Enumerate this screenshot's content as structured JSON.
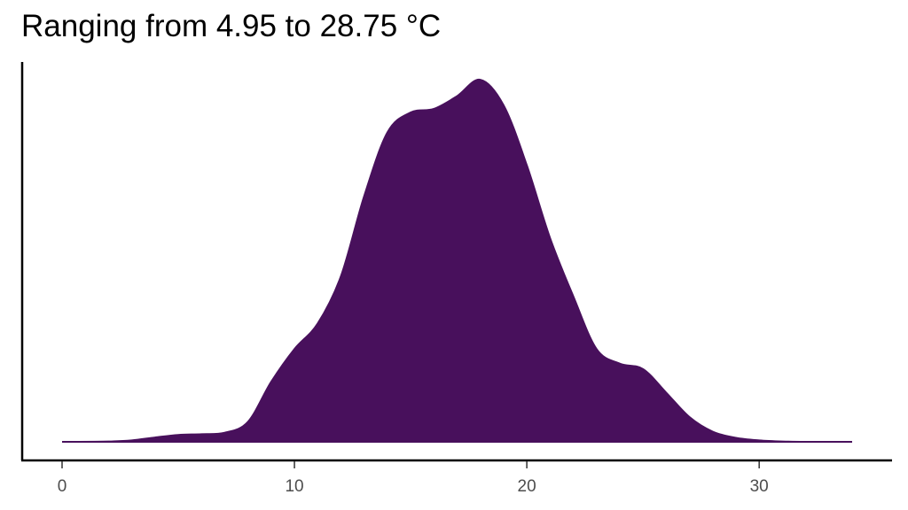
{
  "chart_data": {
    "type": "area",
    "title": "Ranging from 4.95 to 28.75 °C",
    "xlabel": "",
    "ylabel": "",
    "xlim": [
      0,
      34
    ],
    "ylim": [
      0,
      0.1
    ],
    "x_ticks": [
      0,
      10,
      20,
      30
    ],
    "x_tick_labels": [
      "0",
      "10",
      "20",
      "30"
    ],
    "y_ticks_visible": false,
    "grid": false,
    "legend": "none",
    "fill_color": "#48105C",
    "axis_color": "#000000",
    "series": [
      {
        "x": [
          0,
          2,
          3,
          4,
          5,
          6,
          7,
          8,
          9,
          10,
          11,
          12,
          13,
          14,
          15,
          16,
          17,
          18,
          19,
          20,
          21,
          22,
          23,
          24,
          25,
          26,
          27,
          28,
          29,
          30,
          31,
          32,
          34
        ],
        "y": [
          0,
          0.0001,
          0.0004,
          0.0012,
          0.0019,
          0.0021,
          0.0025,
          0.0055,
          0.0165,
          0.0255,
          0.0325,
          0.0455,
          0.0675,
          0.085,
          0.0905,
          0.0915,
          0.095,
          0.0995,
          0.0925,
          0.076,
          0.056,
          0.04,
          0.0255,
          0.0215,
          0.02,
          0.0135,
          0.0068,
          0.0028,
          0.0011,
          0.0004,
          0.0001,
          0,
          0
        ]
      }
    ]
  }
}
